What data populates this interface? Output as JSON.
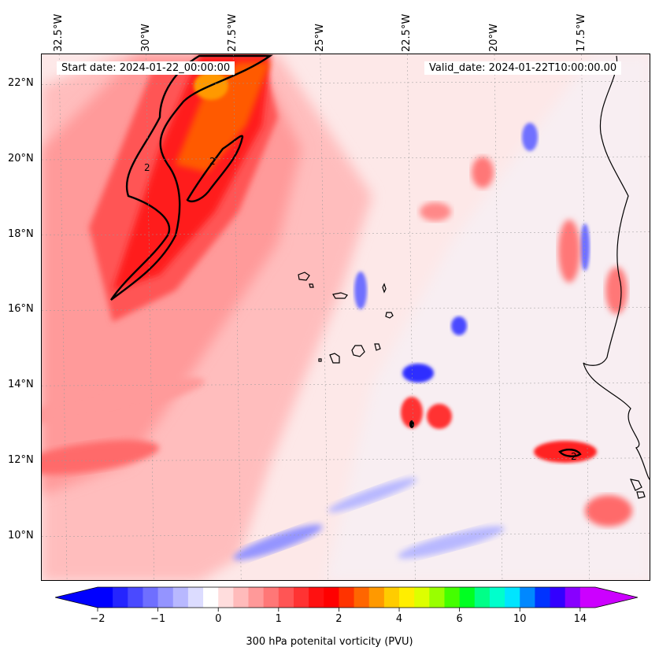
{
  "map": {
    "start_date": "Start date: 2024-01-22_00:00:00",
    "valid_date": "Valid_date: 2024-01-22T10:00:00.00",
    "projection_extent": {
      "lon_min": -33.0,
      "lon_max": -15.5,
      "lat_min": 8.8,
      "lat_max": 22.8
    },
    "lon_labels": [
      "32.5°W",
      "30°W",
      "27.5°W",
      "25°W",
      "22.5°W",
      "20°W",
      "17.5°W"
    ],
    "lon_values": [
      -32.5,
      -30.0,
      -27.5,
      -25.0,
      -22.5,
      -20.0,
      -17.5
    ],
    "lat_labels": [
      "22°N",
      "20°N",
      "18°N",
      "16°N",
      "14°N",
      "12°N",
      "10°N"
    ],
    "lat_values": [
      22,
      20,
      18,
      16,
      14,
      12,
      10
    ],
    "contour_label": "2",
    "field": "300 hPa potenital vorticity (PVU)"
  },
  "colorbar": {
    "label": "300 hPa potenital vorticity (PVU)",
    "tick_labels": [
      "−2",
      "−1",
      "0",
      "1",
      "2",
      "4",
      "6",
      "10",
      "14"
    ],
    "colors": [
      "#0000ff",
      "#2525ff",
      "#4a4aff",
      "#6f6fff",
      "#9494ff",
      "#b8b8ff",
      "#dcdcff",
      "#ffffff",
      "#ffdddd",
      "#ffbbbb",
      "#ff9999",
      "#ff7777",
      "#ff5555",
      "#ff3333",
      "#ff1111",
      "#ff0000",
      "#ff3300",
      "#ff6600",
      "#ff9900",
      "#ffcc00",
      "#ffee00",
      "#ddff00",
      "#99ff00",
      "#44ff00",
      "#00ff22",
      "#00ff88",
      "#00ffcc",
      "#00e5ff",
      "#0088ff",
      "#0033ff",
      "#3300ff",
      "#8800ff",
      "#cc00ff"
    ],
    "under_color": "#0000ff",
    "over_color": "#cc00ff"
  }
}
